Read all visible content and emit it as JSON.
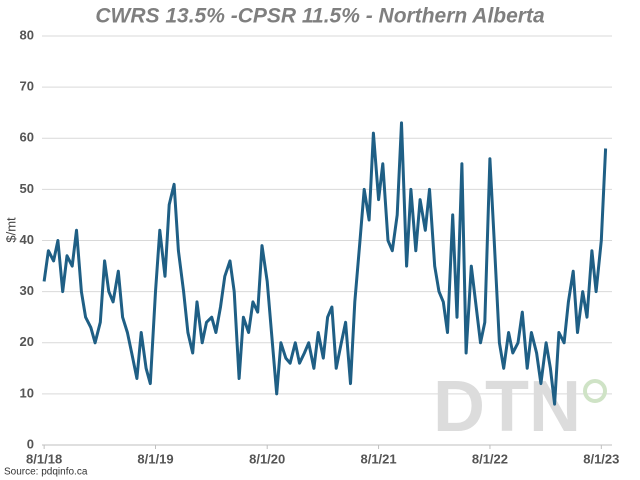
{
  "chart_data": {
    "type": "line",
    "title": "CWRS 13.5% -CPSR 11.5% - Northern Alberta",
    "y_label": "$/mt",
    "source": "Source: pdqinfo.ca",
    "watermark": "DTN",
    "xlim": [
      "2018-07-25",
      "2023-09-05"
    ],
    "xticks": [
      {
        "value": "2018-08-01",
        "label": "8/1/18"
      },
      {
        "value": "2019-08-01",
        "label": "8/1/19"
      },
      {
        "value": "2020-08-01",
        "label": "8/1/20"
      },
      {
        "value": "2021-08-01",
        "label": "8/1/21"
      },
      {
        "value": "2022-08-01",
        "label": "8/1/22"
      },
      {
        "value": "2023-08-01",
        "label": "8/1/23"
      }
    ],
    "ylim": [
      0,
      80
    ],
    "yticks": [
      0,
      10,
      20,
      30,
      40,
      50,
      60,
      70,
      80
    ],
    "grid": true,
    "x": [
      "2018-08-01",
      "2018-08-15",
      "2018-09-01",
      "2018-09-15",
      "2018-10-01",
      "2018-10-15",
      "2018-11-01",
      "2018-11-15",
      "2018-12-01",
      "2018-12-15",
      "2019-01-01",
      "2019-01-15",
      "2019-02-01",
      "2019-02-15",
      "2019-03-01",
      "2019-03-15",
      "2019-04-01",
      "2019-04-15",
      "2019-05-01",
      "2019-05-15",
      "2019-06-01",
      "2019-06-15",
      "2019-07-01",
      "2019-07-15",
      "2019-08-01",
      "2019-08-15",
      "2019-09-01",
      "2019-09-15",
      "2019-10-01",
      "2019-10-15",
      "2019-11-01",
      "2019-11-15",
      "2019-12-01",
      "2019-12-15",
      "2020-01-01",
      "2020-01-15",
      "2020-02-01",
      "2020-02-15",
      "2020-03-01",
      "2020-03-15",
      "2020-04-01",
      "2020-04-15",
      "2020-05-01",
      "2020-05-15",
      "2020-06-01",
      "2020-06-15",
      "2020-07-01",
      "2020-07-15",
      "2020-08-01",
      "2020-08-15",
      "2020-09-01",
      "2020-09-15",
      "2020-10-01",
      "2020-10-15",
      "2020-11-01",
      "2020-11-15",
      "2020-12-01",
      "2020-12-15",
      "2021-01-01",
      "2021-01-15",
      "2021-02-01",
      "2021-02-15",
      "2021-03-01",
      "2021-03-15",
      "2021-04-01",
      "2021-04-15",
      "2021-05-01",
      "2021-05-15",
      "2021-06-01",
      "2021-06-15",
      "2021-07-01",
      "2021-07-15",
      "2021-08-01",
      "2021-08-15",
      "2021-09-01",
      "2021-09-15",
      "2021-10-01",
      "2021-10-15",
      "2021-11-01",
      "2021-11-15",
      "2021-12-01",
      "2021-12-15",
      "2022-01-01",
      "2022-01-15",
      "2022-02-01",
      "2022-02-15",
      "2022-03-01",
      "2022-03-15",
      "2022-04-01",
      "2022-04-15",
      "2022-05-01",
      "2022-05-15",
      "2022-06-01",
      "2022-06-15",
      "2022-07-01",
      "2022-07-15",
      "2022-08-01",
      "2022-08-15",
      "2022-09-01",
      "2022-09-15",
      "2022-10-01",
      "2022-10-15",
      "2022-11-01",
      "2022-11-15",
      "2022-12-01",
      "2022-12-15",
      "2023-01-01",
      "2023-01-15",
      "2023-02-01",
      "2023-02-15",
      "2023-03-01",
      "2023-03-15",
      "2023-04-01",
      "2023-04-15",
      "2023-05-01",
      "2023-05-15",
      "2023-06-01",
      "2023-06-15",
      "2023-07-01",
      "2023-07-15",
      "2023-08-01",
      "2023-08-15"
    ],
    "series": [
      {
        "color": "#1f5f85",
        "values": [
          32,
          38,
          36,
          40,
          30,
          37,
          35,
          42,
          30,
          25,
          23,
          20,
          24,
          36,
          30,
          28,
          34,
          25,
          22,
          18,
          13,
          22,
          15,
          12,
          30,
          42,
          33,
          47,
          51,
          38,
          30,
          22,
          18,
          28,
          20,
          24,
          25,
          22,
          27,
          33,
          36,
          30,
          13,
          25,
          22,
          28,
          26,
          39,
          32,
          22,
          10,
          20,
          17,
          16,
          20,
          16,
          18,
          20,
          15,
          22,
          17,
          25,
          27,
          15,
          20,
          24,
          12,
          28,
          40,
          50,
          44,
          61,
          48,
          55,
          40,
          38,
          45,
          63,
          35,
          50,
          38,
          48,
          42,
          50,
          35,
          30,
          28,
          22,
          45,
          25,
          55,
          18,
          35,
          28,
          20,
          24,
          56,
          40,
          20,
          15,
          22,
          18,
          20,
          26,
          15,
          22,
          18,
          12,
          20,
          15,
          8,
          22,
          20,
          28,
          34,
          22,
          30,
          25,
          38,
          30,
          40,
          58
        ]
      }
    ]
  }
}
